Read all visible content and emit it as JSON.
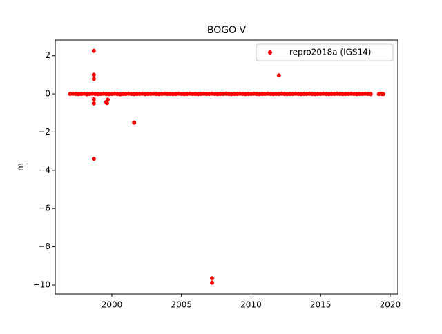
{
  "chart_data": {
    "type": "scatter",
    "title": "BOGO V",
    "ylabel": "m",
    "series": [
      {
        "name": "repro2018a (IGS14)",
        "color": "#ff0000",
        "x": [
          1997.0,
          1997.2,
          1997.4,
          1997.6,
          1997.8,
          1998.0,
          1998.2,
          1998.4,
          1998.6,
          1998.8,
          1999.0,
          1999.2,
          1999.4,
          1999.6,
          1999.8,
          2000.0,
          2000.2,
          2000.4,
          2000.6,
          2000.8,
          2001.0,
          2001.2,
          2001.4,
          2001.6,
          2001.8,
          2002.0,
          2002.2,
          2002.4,
          2002.6,
          2002.8,
          2003.0,
          2003.2,
          2003.4,
          2003.6,
          2003.8,
          2004.0,
          2004.2,
          2004.4,
          2004.6,
          2004.8,
          2005.0,
          2005.2,
          2005.4,
          2005.6,
          2005.8,
          2006.0,
          2006.2,
          2006.4,
          2006.6,
          2006.8,
          2007.0,
          2007.2,
          2007.4,
          2007.6,
          2007.8,
          2008.0,
          2008.2,
          2008.4,
          2008.6,
          2008.8,
          2009.0,
          2009.2,
          2009.4,
          2009.6,
          2009.8,
          2010.0,
          2010.2,
          2010.4,
          2010.6,
          2010.8,
          2011.0,
          2011.2,
          2011.4,
          2011.6,
          2011.8,
          2012.0,
          2012.2,
          2012.4,
          2012.6,
          2012.8,
          2013.0,
          2013.2,
          2013.4,
          2013.6,
          2013.8,
          2014.0,
          2014.2,
          2014.4,
          2014.6,
          2014.8,
          2015.0,
          2015.2,
          2015.4,
          2015.6,
          2015.8,
          2016.0,
          2016.2,
          2016.4,
          2016.6,
          2016.8,
          2017.0,
          2017.2,
          2017.4,
          2017.6,
          2017.8,
          2018.0,
          2018.2,
          2018.4,
          2018.6,
          2019.2,
          2019.3,
          2019.4,
          2019.5,
          1998.7,
          1998.7,
          1998.7,
          1998.7,
          1998.7,
          1998.7,
          1999.6,
          1999.65,
          1999.7,
          2001.6,
          2007.2,
          2007.2,
          2012.0
        ],
        "y": [
          0,
          0.01,
          0,
          -0.01,
          0,
          0.01,
          -0.02,
          0,
          0.01,
          0,
          -0.01,
          0,
          0.01,
          0,
          -0.01,
          0,
          0.01,
          0,
          -0.02,
          0,
          0,
          0.01,
          0,
          -0.01,
          0,
          0,
          0.01,
          -0.01,
          0,
          0,
          0.01,
          0,
          -0.01,
          0,
          0.01,
          0,
          0,
          -0.01,
          0,
          0.01,
          0,
          -0.01,
          0,
          0.01,
          0,
          0,
          -0.01,
          0,
          0.01,
          0,
          0,
          0.01,
          0,
          -0.01,
          0,
          0,
          0.01,
          0,
          -0.01,
          0,
          0,
          0.01,
          0,
          -0.01,
          0,
          0,
          0.01,
          0,
          -0.01,
          0,
          0,
          0.01,
          0,
          -0.01,
          0,
          0,
          0.01,
          0,
          -0.01,
          0,
          0,
          0.01,
          0,
          -0.01,
          0,
          0,
          0.01,
          0,
          -0.01,
          0,
          0,
          0.01,
          0,
          -0.01,
          0,
          0,
          0.01,
          0,
          -0.01,
          0,
          0,
          0.01,
          0,
          -0.01,
          0,
          0,
          0.01,
          0,
          -0.01,
          0,
          0.01,
          0,
          -0.01,
          2.25,
          1.0,
          0.78,
          -0.28,
          -0.5,
          -3.4,
          -0.42,
          -0.48,
          -0.3,
          -1.5,
          -9.65,
          -9.88,
          0.97
        ]
      }
    ],
    "xlim": [
      1995.93,
      2020.55
    ],
    "ylim": [
      -10.47,
      2.82
    ],
    "xticks": [
      2000,
      2005,
      2010,
      2015,
      2020
    ],
    "yticks": [
      {
        "value": -10,
        "label": "−10"
      },
      {
        "value": -8,
        "label": "−8"
      },
      {
        "value": -6,
        "label": "−6"
      },
      {
        "value": -4,
        "label": "−4"
      },
      {
        "value": -2,
        "label": "−2"
      },
      0,
      2
    ],
    "legend": "upper right"
  }
}
